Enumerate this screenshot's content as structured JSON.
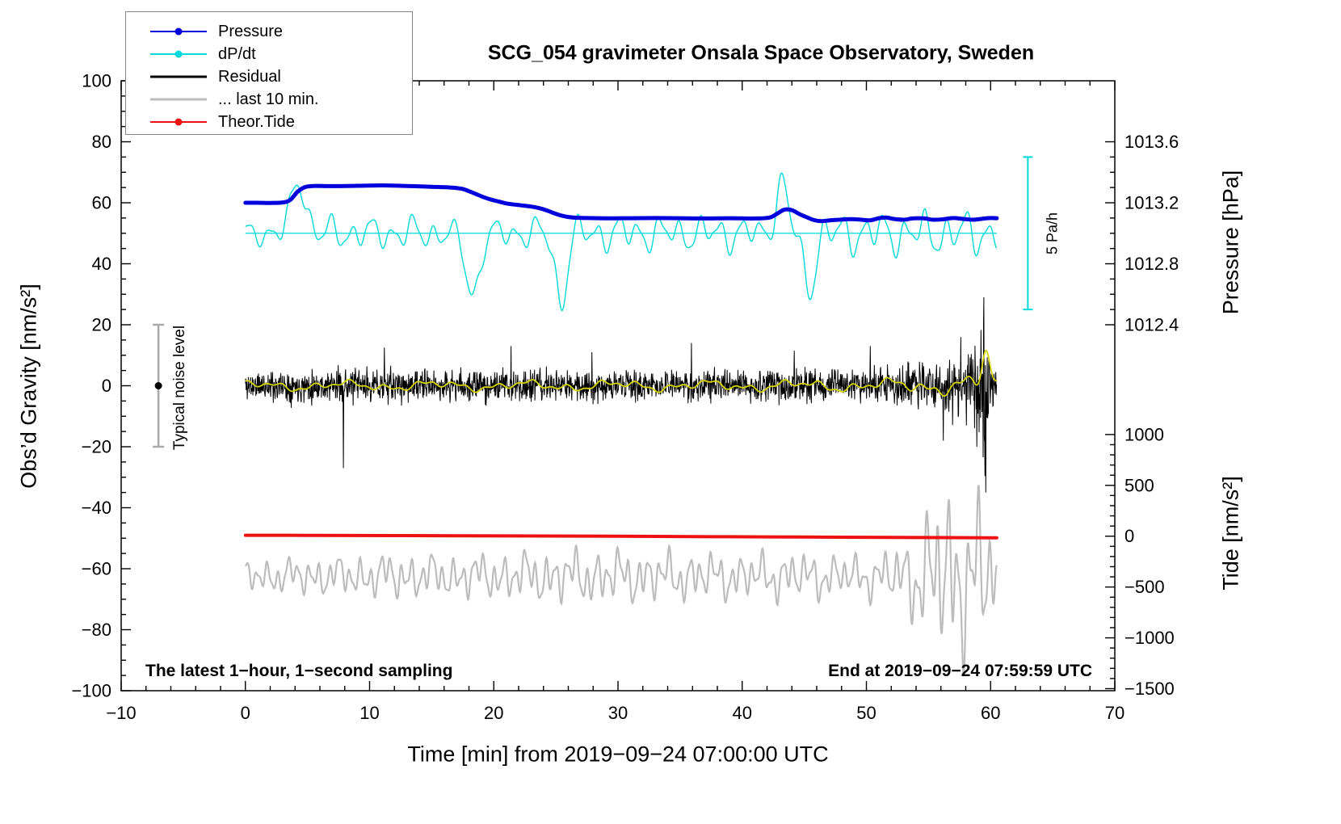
{
  "chart_data": {
    "type": "line",
    "title": "SCG_054 gravimeter Onsala Space Observatory, Sweden",
    "xlabel": "Time [min] from 2019−09−24 07:00:00 UTC",
    "ylabel_left": "Obs’d Gravity [nm/s²]",
    "ylabel_right_pressure": "Pressure [hPa]",
    "ylabel_right_tide": "Tide [nm/s²]",
    "annotations": {
      "noise_label": "Typical noise level",
      "scalebar_label": "5 Pa/h",
      "footer_left": "The latest 1−hour, 1−second sampling",
      "footer_right": "End at 2019−09−24 07:59:59 UTC"
    },
    "axes": {
      "x": {
        "min": -10,
        "max": 70,
        "ticks": [
          -10,
          0,
          10,
          20,
          30,
          40,
          50,
          60,
          70
        ],
        "minor_step": 2
      },
      "gravity": {
        "min": -100,
        "max": 100,
        "ticks": [
          -100,
          -80,
          -60,
          -40,
          -20,
          0,
          20,
          40,
          60,
          80,
          100
        ],
        "minor_step": 5
      },
      "pressure": {
        "ticks": [
          1013.6,
          1013.2,
          1012.8,
          1012.4
        ],
        "minor_step": 0.1,
        "hpa_per_gravity_unit": 0.02,
        "gravity_at_1013_2": 60
      },
      "tide": {
        "ticks": [
          1000,
          500,
          0,
          -500,
          -1000,
          -1500
        ],
        "minor_step": 100,
        "tide_per_gravity_unit": 30,
        "gravity_at_zero": -49.33
      }
    },
    "colors": {
      "pressure": "#0000dd",
      "dpdt": "#00d9d9",
      "residual": "#000000",
      "residual_last10": "#bcbcbc",
      "residual_smooth": "#d4d400",
      "tide": "#ee1111",
      "noise_bar": "#a9a9a9",
      "frame": "#000000"
    },
    "legend": {
      "items": [
        {
          "label": "Pressure",
          "series": "pressure",
          "marker": "line-dot"
        },
        {
          "label": "dP/dt",
          "series": "dpdt",
          "marker": "line-dot"
        },
        {
          "label": "Residual",
          "series": "residual",
          "marker": "line"
        },
        {
          "label": "... last 10 min.",
          "series": "residual_last10",
          "marker": "line"
        },
        {
          "label": "Theor.Tide",
          "series": "tide",
          "marker": "line-dot"
        }
      ]
    },
    "noise_bar": {
      "x_min": -7,
      "gravity_range": [
        -20,
        20
      ],
      "dot_at": 0
    },
    "scale_bar": {
      "x_min": 63,
      "gravity_range": [
        25,
        75
      ],
      "pa_per_hour": 5
    },
    "series": {
      "t_range": [
        0,
        60.5
      ],
      "pressure_hpa": [
        [
          0,
          1013.2
        ],
        [
          1,
          1013.2
        ],
        [
          2,
          1013.199
        ],
        [
          3,
          1013.202
        ],
        [
          3.6,
          1013.218
        ],
        [
          4.2,
          1013.272
        ],
        [
          4.8,
          1013.303
        ],
        [
          5.5,
          1013.31
        ],
        [
          7,
          1013.309
        ],
        [
          9,
          1013.311
        ],
        [
          11,
          1013.314
        ],
        [
          13,
          1013.31
        ],
        [
          15,
          1013.305
        ],
        [
          16.5,
          1013.3
        ],
        [
          17.4,
          1013.292
        ],
        [
          18,
          1013.276
        ],
        [
          18.6,
          1013.256
        ],
        [
          19.2,
          1013.236
        ],
        [
          19.8,
          1013.22
        ],
        [
          20.4,
          1013.208
        ],
        [
          21,
          1013.196
        ],
        [
          22,
          1013.185
        ],
        [
          23,
          1013.175
        ],
        [
          23.6,
          1013.166
        ],
        [
          24.2,
          1013.152
        ],
        [
          24.8,
          1013.133
        ],
        [
          25.4,
          1013.117
        ],
        [
          26,
          1013.107
        ],
        [
          26.6,
          1013.102
        ],
        [
          27.5,
          1013.1
        ],
        [
          29,
          1013.098
        ],
        [
          31,
          1013.099
        ],
        [
          33,
          1013.1
        ],
        [
          35,
          1013.099
        ],
        [
          37,
          1013.097
        ],
        [
          39,
          1013.099
        ],
        [
          41,
          1013.097
        ],
        [
          42.2,
          1013.103
        ],
        [
          42.8,
          1013.128
        ],
        [
          43.4,
          1013.155
        ],
        [
          44,
          1013.152
        ],
        [
          44.6,
          1013.126
        ],
        [
          45.2,
          1013.105
        ],
        [
          45.8,
          1013.086
        ],
        [
          46.4,
          1013.08
        ],
        [
          47.2,
          1013.086
        ],
        [
          48,
          1013.09
        ],
        [
          48.8,
          1013.093
        ],
        [
          49.6,
          1013.089
        ],
        [
          50.3,
          1013.085
        ],
        [
          51,
          1013.099
        ],
        [
          51.6,
          1013.103
        ],
        [
          52.2,
          1013.094
        ],
        [
          53,
          1013.089
        ],
        [
          53.8,
          1013.098
        ],
        [
          54.6,
          1013.098
        ],
        [
          55.4,
          1013.089
        ],
        [
          56.2,
          1013.092
        ],
        [
          57,
          1013.1
        ],
        [
          57.8,
          1013.094
        ],
        [
          58.6,
          1013.089
        ],
        [
          59.4,
          1013.096
        ],
        [
          60,
          1013.1
        ],
        [
          60.5,
          1013.099
        ]
      ],
      "dpdt": {
        "unit": "Pa/h",
        "gravity_at_zero": 50,
        "gravity_per_pa_per_hour": 10,
        "reference_line_gravity": 50,
        "wave": {
          "periods": [
            1.65,
            3.4,
            0.9
          ],
          "weights": [
            0.8,
            0.45,
            0.25
          ],
          "phases": [
            0.4,
            1.8,
            3.0
          ]
        },
        "amplitude_envelope": [
          [
            0,
            0.28
          ],
          [
            2,
            0.36
          ],
          [
            6,
            0.46
          ],
          [
            10,
            0.42
          ],
          [
            14,
            0.46
          ],
          [
            17,
            0.34
          ],
          [
            20,
            0.36
          ],
          [
            23,
            0.42
          ],
          [
            27,
            0.46
          ],
          [
            31,
            0.5
          ],
          [
            35,
            0.46
          ],
          [
            39,
            0.5
          ],
          [
            42,
            0.38
          ],
          [
            44,
            0.3
          ],
          [
            47,
            0.55
          ],
          [
            52,
            0.58
          ],
          [
            56,
            0.6
          ],
          [
            60.5,
            0.6
          ]
        ],
        "events": [
          [
            4.3,
            0.55,
            1.75
          ],
          [
            18.3,
            0.55,
            -2.0
          ],
          [
            25.4,
            0.45,
            -2.25
          ],
          [
            43.2,
            0.45,
            1.7
          ],
          [
            45.4,
            0.45,
            -1.8
          ]
        ]
      },
      "residual": {
        "center": 0,
        "sample_step_min": 0.03,
        "seed": 11,
        "envelope": [
          [
            0,
            6.5
          ],
          [
            8,
            6.8
          ],
          [
            16,
            6.5
          ],
          [
            24,
            6.6
          ],
          [
            32,
            6.5
          ],
          [
            40,
            6.6
          ],
          [
            46,
            6.8
          ],
          [
            50,
            7.2
          ],
          [
            52,
            7.8
          ],
          [
            53.5,
            8.8
          ],
          [
            55,
            10.5
          ],
          [
            56,
            11.5
          ],
          [
            57,
            12.5
          ],
          [
            58,
            13.5
          ],
          [
            58.8,
            16
          ],
          [
            59.2,
            24
          ],
          [
            59.5,
            36
          ],
          [
            59.8,
            30
          ],
          [
            60.1,
            16
          ],
          [
            60.5,
            10
          ]
        ],
        "spikes": [
          [
            7.9,
            -27
          ],
          [
            11.2,
            12.5
          ],
          [
            21.4,
            13
          ],
          [
            27.9,
            11
          ],
          [
            35.9,
            14
          ],
          [
            44.2,
            11.5
          ],
          [
            50.3,
            13
          ],
          [
            56.2,
            -18
          ],
          [
            57.6,
            16
          ],
          [
            58.9,
            -20
          ],
          [
            59.45,
            29
          ],
          [
            59.62,
            -35
          ]
        ]
      },
      "residual_smooth": {
        "offset": 0,
        "waves": {
          "periods": [
            7.3,
            2.9,
            1.35
          ],
          "weights": [
            0.55,
            0.45,
            0.3
          ],
          "phases": [
            1.0,
            2.2,
            0.3
          ]
        },
        "amplitude_envelope": [
          [
            0,
            1.6
          ],
          [
            20,
            1.7
          ],
          [
            40,
            1.8
          ],
          [
            50,
            2.0
          ],
          [
            55,
            2.6
          ],
          [
            58,
            3.4
          ],
          [
            60.5,
            4.2
          ]
        ],
        "events": [
          [
            59.6,
            0.3,
            9.5
          ]
        ]
      },
      "residual_last10": {
        "offset_gravity": -62.5,
        "sample_step_min": 0.04,
        "waves": {
          "periods": [
            0.83,
            1.9,
            0.47,
            3.7
          ],
          "weights": [
            0.55,
            0.35,
            0.22,
            0.2
          ],
          "phases": [
            0.7,
            2.1,
            4.0,
            1.2
          ]
        },
        "amplitude_envelope": [
          [
            0,
            5
          ],
          [
            4,
            6
          ],
          [
            8,
            6.5
          ],
          [
            12,
            7.5
          ],
          [
            16,
            7
          ],
          [
            20,
            7.5
          ],
          [
            24,
            8.5
          ],
          [
            28,
            9
          ],
          [
            32,
            8.5
          ],
          [
            36,
            8
          ],
          [
            40,
            7.5
          ],
          [
            44,
            8
          ],
          [
            48,
            7
          ],
          [
            51,
            7.5
          ],
          [
            53,
            11
          ],
          [
            54,
            16
          ],
          [
            55,
            21
          ],
          [
            56,
            27
          ],
          [
            57,
            29
          ],
          [
            58,
            25
          ],
          [
            58.8,
            27
          ],
          [
            59.6,
            26
          ],
          [
            60.1,
            18
          ],
          [
            60.5,
            9
          ]
        ]
      },
      "tide_nms2": [
        [
          0,
          9
        ],
        [
          6,
          8
        ],
        [
          12,
          6
        ],
        [
          18,
          4
        ],
        [
          24,
          2
        ],
        [
          30,
          -1
        ],
        [
          36,
          -4
        ],
        [
          42,
          -7
        ],
        [
          48,
          -10
        ],
        [
          54,
          -13
        ],
        [
          60.5,
          -16
        ]
      ]
    }
  }
}
